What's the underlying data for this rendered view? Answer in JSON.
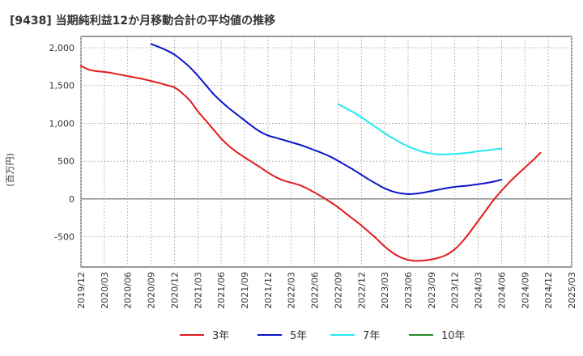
{
  "chart_data": {
    "type": "line",
    "title": "[9438]  当期純利益12か月移動合計の平均値の推移",
    "ylabel": "(百万円)",
    "xlabel": "",
    "ylim": [
      -900,
      2150
    ],
    "yticks": [
      2000,
      1500,
      1000,
      500,
      0,
      -500
    ],
    "ytick_labels": [
      "2,000",
      "1,500",
      "1,000",
      "500",
      "0",
      "-500"
    ],
    "xticks": [
      "2019/12",
      "2020/03",
      "2020/06",
      "2020/09",
      "2020/12",
      "2021/03",
      "2021/06",
      "2021/09",
      "2021/12",
      "2022/03",
      "2022/06",
      "2022/09",
      "2022/12",
      "2023/03",
      "2023/06",
      "2023/09",
      "2023/12",
      "2024/03",
      "2024/06",
      "2024/09",
      "2024/12",
      "2025/03"
    ],
    "grid": true,
    "legend_position": "bottom",
    "series": [
      {
        "name": "3年",
        "color": "#e31a1c",
        "points": [
          [
            "2019/12",
            1760
          ],
          [
            "2020/01",
            1710
          ],
          [
            "2020/02",
            1690
          ],
          [
            "2020/03",
            1680
          ],
          [
            "2020/04",
            1665
          ],
          [
            "2020/05",
            1645
          ],
          [
            "2020/06",
            1625
          ],
          [
            "2020/07",
            1605
          ],
          [
            "2020/08",
            1585
          ],
          [
            "2020/09",
            1560
          ],
          [
            "2020/10",
            1535
          ],
          [
            "2020/11",
            1505
          ],
          [
            "2020/12",
            1475
          ],
          [
            "2021/01",
            1400
          ],
          [
            "2021/02",
            1300
          ],
          [
            "2021/03",
            1160
          ],
          [
            "2021/04",
            1040
          ],
          [
            "2021/05",
            920
          ],
          [
            "2021/06",
            800
          ],
          [
            "2021/07",
            700
          ],
          [
            "2021/08",
            620
          ],
          [
            "2021/09",
            550
          ],
          [
            "2021/10",
            485
          ],
          [
            "2021/11",
            420
          ],
          [
            "2021/12",
            350
          ],
          [
            "2022/01",
            290
          ],
          [
            "2022/02",
            245
          ],
          [
            "2022/03",
            215
          ],
          [
            "2022/04",
            185
          ],
          [
            "2022/05",
            140
          ],
          [
            "2022/06",
            85
          ],
          [
            "2022/07",
            25
          ],
          [
            "2022/08",
            -40
          ],
          [
            "2022/09",
            -110
          ],
          [
            "2022/10",
            -190
          ],
          [
            "2022/11",
            -270
          ],
          [
            "2022/12",
            -350
          ],
          [
            "2023/01",
            -440
          ],
          [
            "2023/02",
            -530
          ],
          [
            "2023/03",
            -630
          ],
          [
            "2023/04",
            -710
          ],
          [
            "2023/05",
            -770
          ],
          [
            "2023/06",
            -805
          ],
          [
            "2023/07",
            -820
          ],
          [
            "2023/08",
            -815
          ],
          [
            "2023/09",
            -800
          ],
          [
            "2023/10",
            -775
          ],
          [
            "2023/11",
            -735
          ],
          [
            "2023/12",
            -665
          ],
          [
            "2024/01",
            -560
          ],
          [
            "2024/02",
            -430
          ],
          [
            "2024/03",
            -290
          ],
          [
            "2024/04",
            -150
          ],
          [
            "2024/05",
            -10
          ],
          [
            "2024/06",
            110
          ],
          [
            "2024/07",
            220
          ],
          [
            "2024/08",
            320
          ],
          [
            "2024/09",
            415
          ],
          [
            "2024/10",
            510
          ],
          [
            "2024/11",
            610
          ]
        ]
      },
      {
        "name": "5年",
        "color": "#0a14c8",
        "points": [
          [
            "2020/09",
            2050
          ],
          [
            "2020/10",
            2010
          ],
          [
            "2020/11",
            1965
          ],
          [
            "2020/12",
            1910
          ],
          [
            "2021/01",
            1830
          ],
          [
            "2021/02",
            1740
          ],
          [
            "2021/03",
            1630
          ],
          [
            "2021/04",
            1510
          ],
          [
            "2021/05",
            1390
          ],
          [
            "2021/06",
            1290
          ],
          [
            "2021/07",
            1200
          ],
          [
            "2021/08",
            1120
          ],
          [
            "2021/09",
            1040
          ],
          [
            "2021/10",
            960
          ],
          [
            "2021/11",
            890
          ],
          [
            "2021/12",
            840
          ],
          [
            "2022/01",
            810
          ],
          [
            "2022/02",
            780
          ],
          [
            "2022/03",
            750
          ],
          [
            "2022/04",
            720
          ],
          [
            "2022/05",
            685
          ],
          [
            "2022/06",
            645
          ],
          [
            "2022/07",
            605
          ],
          [
            "2022/08",
            560
          ],
          [
            "2022/09",
            505
          ],
          [
            "2022/10",
            445
          ],
          [
            "2022/11",
            385
          ],
          [
            "2022/12",
            320
          ],
          [
            "2023/01",
            255
          ],
          [
            "2023/02",
            195
          ],
          [
            "2023/03",
            140
          ],
          [
            "2023/04",
            100
          ],
          [
            "2023/05",
            75
          ],
          [
            "2023/06",
            65
          ],
          [
            "2023/07",
            70
          ],
          [
            "2023/08",
            85
          ],
          [
            "2023/09",
            105
          ],
          [
            "2023/10",
            125
          ],
          [
            "2023/11",
            145
          ],
          [
            "2023/12",
            160
          ],
          [
            "2024/01",
            170
          ],
          [
            "2024/02",
            180
          ],
          [
            "2024/03",
            195
          ],
          [
            "2024/04",
            210
          ],
          [
            "2024/05",
            230
          ],
          [
            "2024/06",
            255
          ]
        ]
      },
      {
        "name": "7年",
        "color": "#22e8f0",
        "points": [
          [
            "2022/09",
            1255
          ],
          [
            "2022/10",
            1200
          ],
          [
            "2022/11",
            1145
          ],
          [
            "2022/12",
            1080
          ],
          [
            "2023/01",
            1010
          ],
          [
            "2023/02",
            940
          ],
          [
            "2023/03",
            870
          ],
          [
            "2023/04",
            805
          ],
          [
            "2023/05",
            745
          ],
          [
            "2023/06",
            695
          ],
          [
            "2023/07",
            655
          ],
          [
            "2023/08",
            620
          ],
          [
            "2023/09",
            600
          ],
          [
            "2023/10",
            590
          ],
          [
            "2023/11",
            590
          ],
          [
            "2023/12",
            595
          ],
          [
            "2024/01",
            605
          ],
          [
            "2024/02",
            615
          ],
          [
            "2024/03",
            630
          ],
          [
            "2024/04",
            640
          ],
          [
            "2024/05",
            655
          ],
          [
            "2024/06",
            665
          ]
        ]
      },
      {
        "name": "10年",
        "color": "#228b22",
        "points": []
      }
    ]
  }
}
